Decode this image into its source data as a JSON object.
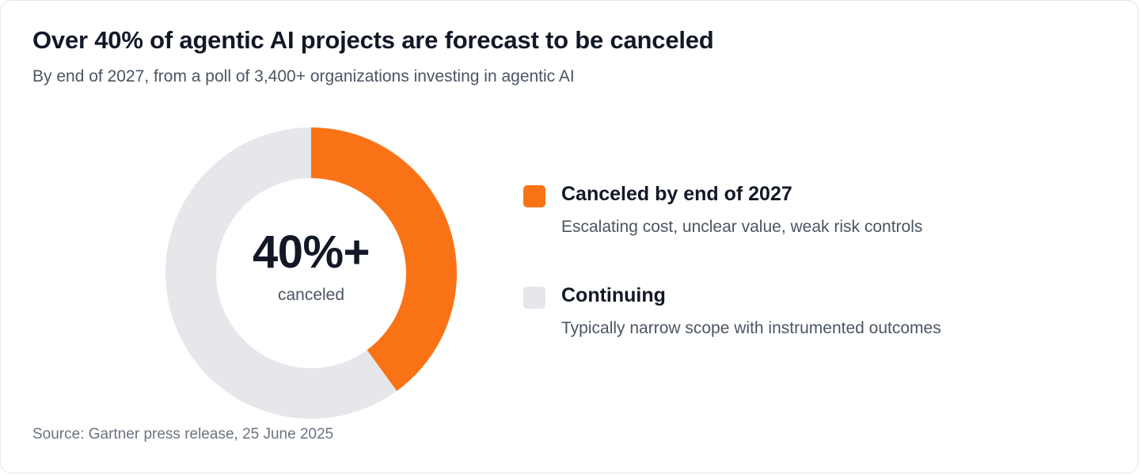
{
  "chart_data": {
    "type": "pie",
    "title": "Over 40% of agentic AI projects are forecast to be canceled",
    "subtitle": "By end of 2027, from a poll of 3,400+ organizations investing in agentic AI",
    "center": {
      "value": "40%+",
      "label": "canceled"
    },
    "slices": [
      {
        "name": "Canceled by end of 2027",
        "description": "Escalating cost, unclear value, weak risk controls",
        "value": 40,
        "color": "#f97316"
      },
      {
        "name": "Continuing",
        "description": "Typically narrow scope with instrumented outcomes",
        "value": 60,
        "color": "#e5e7eb"
      }
    ],
    "legend_position": "right",
    "source": "Source: Gartner press release, 25 June 2025"
  }
}
